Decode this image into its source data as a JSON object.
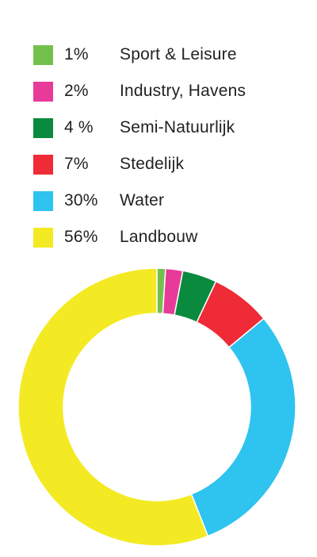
{
  "chart_data": {
    "type": "pie",
    "donut": true,
    "start_angle_deg": 0,
    "direction": "clockwise",
    "legend_placement": "top",
    "series": [
      {
        "name": "Sport & Leisure",
        "label": "1%",
        "value": 1,
        "color": "#74c04c"
      },
      {
        "name": "Industry, Havens",
        "label": "2%",
        "value": 2,
        "color": "#e83a98"
      },
      {
        "name": "Semi-Natuurlijk",
        "label": "4 %",
        "value": 4,
        "color": "#0a8a3f"
      },
      {
        "name": "Stedelijk",
        "label": "7%",
        "value": 7,
        "color": "#ee2b36"
      },
      {
        "name": "Water",
        "label": "30%",
        "value": 30,
        "color": "#2fc3ef"
      },
      {
        "name": "Landbouw",
        "label": "56%",
        "value": 56,
        "color": "#f3ea24"
      }
    ]
  }
}
